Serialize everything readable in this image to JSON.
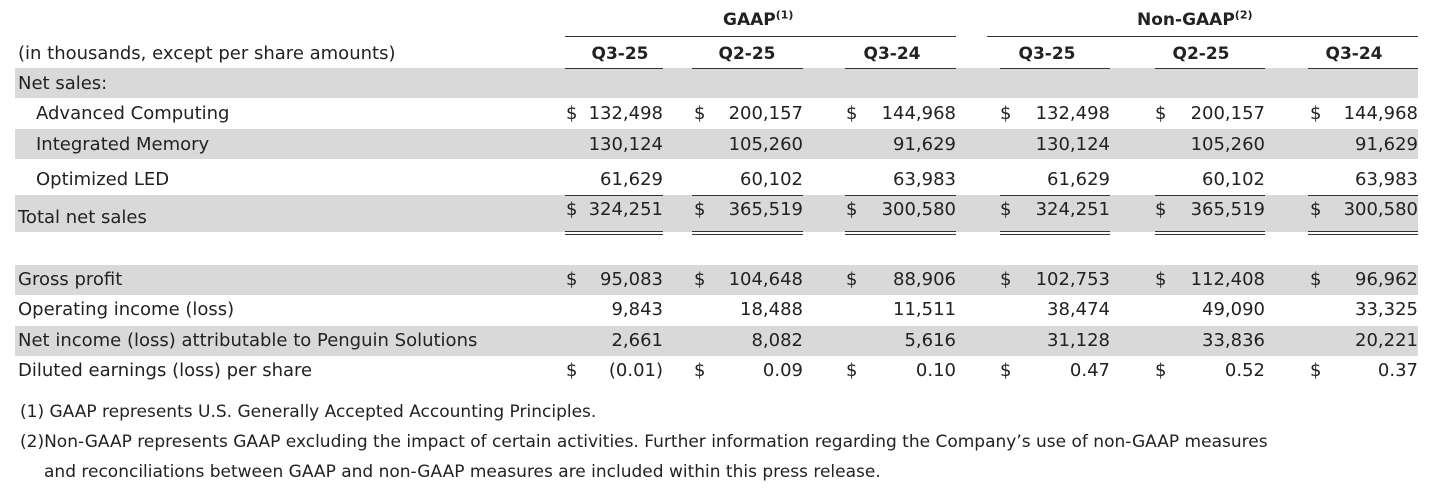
{
  "header": {
    "gaap_label": "GAAP",
    "gaap_sup": "(1)",
    "nongaap_label": "Non-GAAP",
    "nongaap_sup": "(2)",
    "units_note": "(in thousands, except per share amounts)",
    "columns": [
      "Q3-25",
      "Q2-25",
      "Q3-24",
      "Q3-25",
      "Q2-25",
      "Q3-24"
    ]
  },
  "net_sales_label": "Net sales:",
  "segments": [
    {
      "label": "Advanced Computing",
      "dollar": "$",
      "values": [
        "132,498",
        "200,157",
        "144,968",
        "132,498",
        "200,157",
        "144,968"
      ]
    },
    {
      "label": "Integrated Memory",
      "dollar": "",
      "values": [
        "130,124",
        "105,260",
        "91,629",
        "130,124",
        "105,260",
        "91,629"
      ]
    },
    {
      "label": "Optimized LED",
      "dollar": "",
      "values": [
        "61,629",
        "60,102",
        "63,983",
        "61,629",
        "60,102",
        "63,983"
      ]
    }
  ],
  "total": {
    "label": "Total net sales",
    "dollar": "$",
    "values": [
      "324,251",
      "365,519",
      "300,580",
      "324,251",
      "365,519",
      "300,580"
    ]
  },
  "metrics": [
    {
      "label": "Gross profit",
      "dollar": "$",
      "values": [
        "95,083",
        "104,648",
        "88,906",
        "102,753",
        "112,408",
        "96,962"
      ]
    },
    {
      "label": "Operating income (loss)",
      "dollar": "",
      "values": [
        "9,843",
        "18,488",
        "11,511",
        "38,474",
        "49,090",
        "33,325"
      ]
    },
    {
      "label": "Net income (loss) attributable to Penguin Solutions",
      "dollar": "",
      "values": [
        "2,661",
        "8,082",
        "5,616",
        "31,128",
        "33,836",
        "20,221"
      ]
    },
    {
      "label": "Diluted earnings (loss) per share",
      "dollar": "$",
      "values": [
        "(0.01)",
        "0.09",
        "0.10",
        "0.47",
        "0.52",
        "0.37"
      ]
    }
  ],
  "footnotes": [
    "(1) GAAP represents U.S. Generally Accepted Accounting Principles.",
    "(2)Non-GAAP represents GAAP excluding the impact of certain activities. Further information regarding the Company’s use of non-GAAP measures",
    "and reconciliations between GAAP and non-GAAP measures are included within this press release."
  ]
}
